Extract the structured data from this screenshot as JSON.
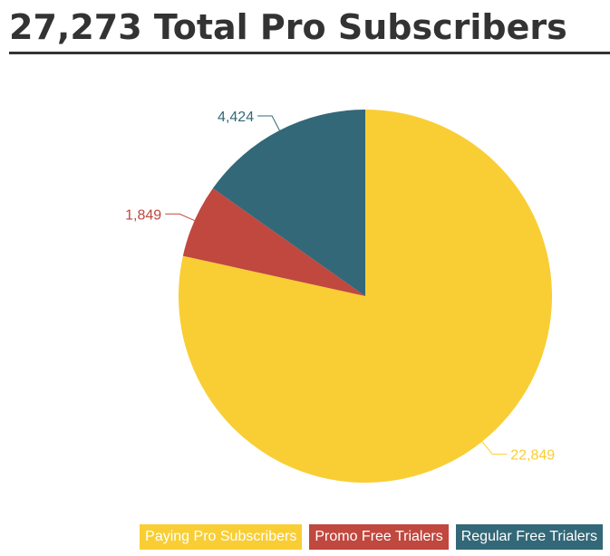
{
  "chart_data": {
    "type": "pie",
    "title": "27,273 Total Pro Subscribers",
    "slices": [
      {
        "name": "Paying Pro Subscribers",
        "value": 22849,
        "label": "22,849",
        "color": "#F9CE34"
      },
      {
        "name": "Promo Free Trialers",
        "value": 1849,
        "label": "1,849",
        "color": "#C0483F"
      },
      {
        "name": "Regular Free Trialers",
        "value": 4424,
        "label": "4,424",
        "color": "#336878"
      }
    ],
    "legend_position": "bottom-right",
    "start_angle_deg": 0,
    "direction": "clockwise"
  }
}
